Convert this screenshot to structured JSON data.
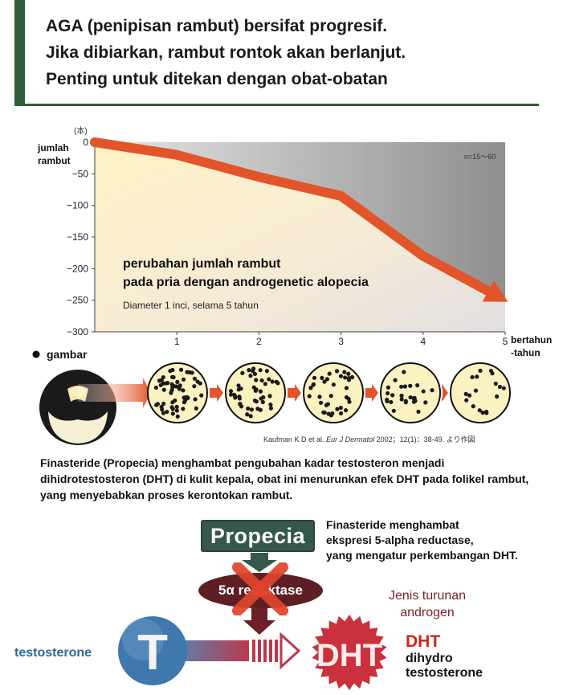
{
  "header": {
    "line1": "AGA (penipisan rambut) bersifat progresif.",
    "line2": "Jika dibiarkan, rambut rontok akan berlanjut.",
    "line3": "Penting untuk ditekan dengan obat-obatan"
  },
  "chart_data": {
    "type": "area",
    "ylabel": "jumlah rambut",
    "ylabel_unit": "(本)",
    "xlabel": "bertahun -tahun",
    "sample_note": "n=15〜60",
    "title": "perubahan jumlah rambut pada pria dengan androgenetic alopecia",
    "subtitle": "Diameter 1 inci, selama 5 tahun",
    "x": [
      0,
      1,
      2,
      3,
      4,
      5
    ],
    "y": [
      0,
      -20,
      -55,
      -85,
      -180,
      -250
    ],
    "xlim": [
      0,
      5
    ],
    "ylim": [
      -300,
      0
    ],
    "yticks": [
      0,
      -50,
      -100,
      -150,
      -200,
      -250,
      -300
    ],
    "xticks": [
      1,
      2,
      3,
      4,
      5
    ],
    "legend": "gambar",
    "citation": {
      "author": "Kaufman K D et al.",
      "journal": "Eur J Dermatol",
      "rest": "2002；12(1)：38-49. より作図"
    }
  },
  "caption": "Finasteride (Propecia) menghambat pengubahan kadar testosteron menjadi dihidrotestosteron (DHT) di kulit kepala, obat ini menurunkan efek DHT pada folikel rambut, yang menyebabkan proses kerontokan rambut.",
  "mechanism": {
    "drug": "Propecia",
    "drug_note_1": "Finasteride menghambat",
    "drug_note_2": "ekspresi 5-alpha reductase,",
    "drug_note_3": "yang mengatur perkembangan DHT.",
    "enzyme": "5α reduktase",
    "androgen_1": "Jenis turunan",
    "androgen_2": "androgen",
    "t_letter": "T",
    "testosterone": "testosterone",
    "dht_badge": "DHT",
    "dht_label": "DHT",
    "dht_name_1": "dihydro",
    "dht_name_2": "testosterone"
  },
  "colors": {
    "header_bar": "#2e5e36",
    "trend_arrow": "#e2552a",
    "area_fill": "#fbf2c8",
    "propecia_box": "#36574c",
    "enzyme_oval": "#5e1f24",
    "block_x": "#e0442b",
    "dht_star": "#c9313c",
    "t_circle": "#3f78ad",
    "testosterone_text": "#2a6a9a"
  }
}
